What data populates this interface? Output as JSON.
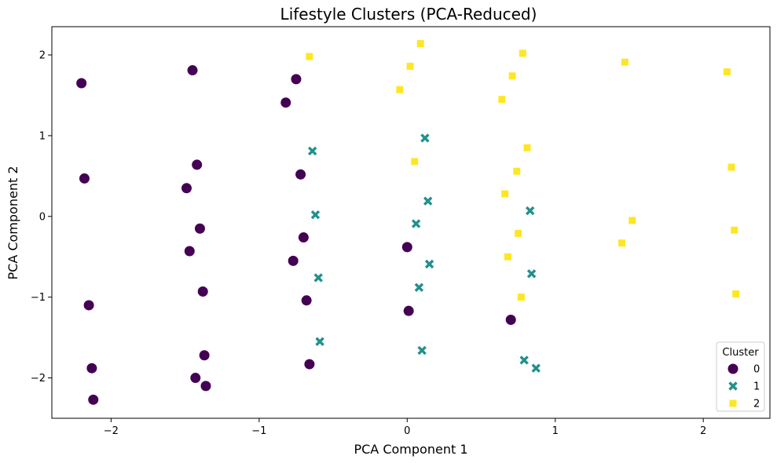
{
  "chart_data": {
    "type": "scatter",
    "title": "Lifestyle Clusters (PCA-Reduced)",
    "xlabel": "PCA Component 1",
    "ylabel": "PCA Component 2",
    "xlim": [
      -2.4,
      2.45
    ],
    "ylim": [
      -2.5,
      2.35
    ],
    "x_ticks": [
      -2,
      -1,
      0,
      1,
      2
    ],
    "x_tick_labels": [
      "−2",
      "−1",
      "0",
      "1",
      "2"
    ],
    "y_ticks": [
      -2,
      -1,
      0,
      1,
      2
    ],
    "y_tick_labels": [
      "−2",
      "−1",
      "0",
      "1",
      "2"
    ],
    "grid": false,
    "legend": {
      "title": "Cluster",
      "position": "lower-right"
    },
    "series": [
      {
        "name": "0",
        "marker": "circle",
        "color": "#440154",
        "points": [
          [
            -2.2,
            1.65
          ],
          [
            -2.18,
            0.47
          ],
          [
            -2.15,
            -1.1
          ],
          [
            -2.13,
            -1.88
          ],
          [
            -2.12,
            -2.27
          ],
          [
            -1.45,
            1.81
          ],
          [
            -1.42,
            0.64
          ],
          [
            -1.49,
            0.35
          ],
          [
            -1.4,
            -0.15
          ],
          [
            -1.47,
            -0.43
          ],
          [
            -1.38,
            -0.93
          ],
          [
            -1.37,
            -1.72
          ],
          [
            -1.43,
            -2.0
          ],
          [
            -1.36,
            -2.1
          ],
          [
            -0.75,
            1.7
          ],
          [
            -0.82,
            1.41
          ],
          [
            -0.72,
            0.52
          ],
          [
            -0.7,
            -0.26
          ],
          [
            -0.77,
            -0.55
          ],
          [
            -0.68,
            -1.04
          ],
          [
            -0.66,
            -1.83
          ],
          [
            0.0,
            -0.38
          ],
          [
            0.01,
            -1.17
          ],
          [
            0.7,
            -1.28
          ]
        ]
      },
      {
        "name": "1",
        "marker": "x",
        "color": "#21918c",
        "points": [
          [
            -0.64,
            0.81
          ],
          [
            -0.62,
            0.02
          ],
          [
            -0.6,
            -0.76
          ],
          [
            -0.59,
            -1.55
          ],
          [
            0.12,
            0.97
          ],
          [
            0.14,
            0.19
          ],
          [
            0.06,
            -0.09
          ],
          [
            0.15,
            -0.59
          ],
          [
            0.08,
            -0.88
          ],
          [
            0.1,
            -1.66
          ],
          [
            0.83,
            0.07
          ],
          [
            0.84,
            -0.71
          ],
          [
            0.79,
            -1.78
          ],
          [
            0.87,
            -1.88
          ]
        ]
      },
      {
        "name": "2",
        "marker": "square",
        "color": "#fde725",
        "points": [
          [
            -0.66,
            1.98
          ],
          [
            0.09,
            2.14
          ],
          [
            0.02,
            1.86
          ],
          [
            -0.05,
            1.57
          ],
          [
            0.05,
            0.68
          ],
          [
            0.78,
            2.02
          ],
          [
            0.71,
            1.74
          ],
          [
            0.64,
            1.45
          ],
          [
            0.81,
            0.85
          ],
          [
            0.74,
            0.56
          ],
          [
            0.66,
            0.28
          ],
          [
            0.75,
            -0.21
          ],
          [
            0.68,
            -0.5
          ],
          [
            0.77,
            -1.0
          ],
          [
            1.47,
            1.91
          ],
          [
            1.52,
            -0.05
          ],
          [
            1.45,
            -0.33
          ],
          [
            2.16,
            1.79
          ],
          [
            2.19,
            0.61
          ],
          [
            2.21,
            -0.17
          ],
          [
            2.22,
            -0.96
          ]
        ]
      }
    ]
  }
}
